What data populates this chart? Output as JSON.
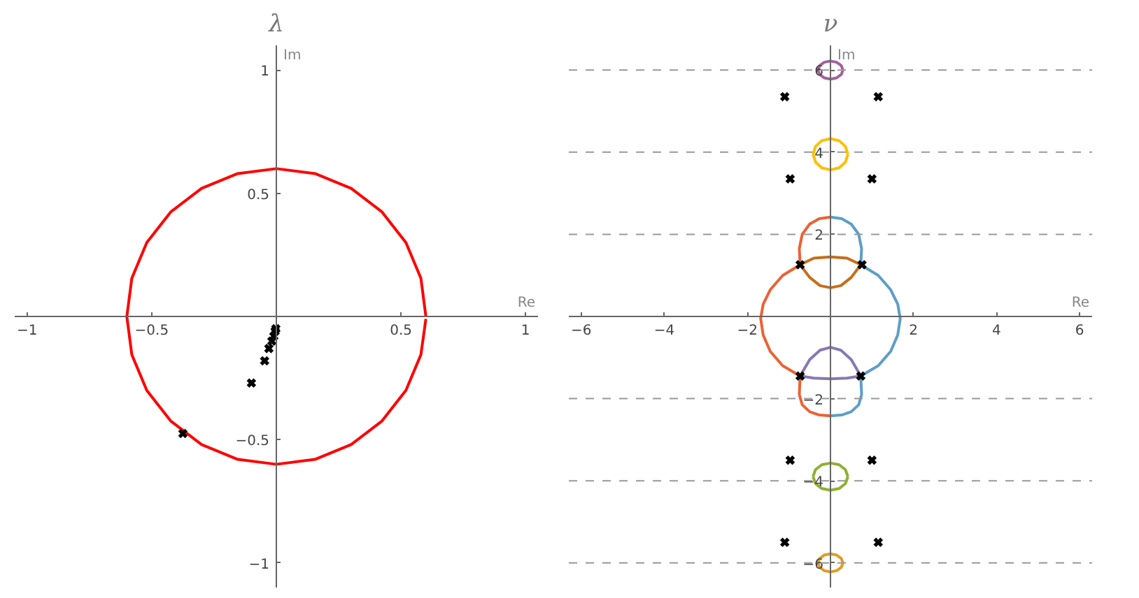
{
  "chart_data": [
    {
      "type": "line",
      "title": "λ",
      "xlabel": "Re",
      "ylabel": "Im",
      "xlim": [
        -1.05,
        1.05
      ],
      "ylim": [
        -1.1,
        1.1
      ],
      "xticks": [
        -1.0,
        -0.5,
        0.5,
        1.0
      ],
      "yticks": [
        -1.0,
        -0.5,
        0.5,
        1.0
      ],
      "grid": false,
      "series": [
        {
          "color": "#ff0000",
          "x": [
            0.6,
            0.58,
            0.52,
            0.424,
            0.3,
            0.155,
            0,
            -0.155,
            -0.3,
            -0.424,
            -0.52,
            -0.58,
            -0.6,
            -0.58,
            -0.52,
            -0.424,
            -0.3,
            -0.155,
            0,
            0.155,
            0.3,
            0.424,
            0.52,
            0.58,
            0.6
          ],
          "values": [
            0,
            0.155,
            0.3,
            0.424,
            0.52,
            0.58,
            0.6,
            0.58,
            0.52,
            0.424,
            0.3,
            0.155,
            0,
            -0.155,
            -0.3,
            -0.424,
            -0.52,
            -0.58,
            -0.6,
            -0.58,
            -0.52,
            -0.424,
            -0.3,
            -0.155,
            -0.01
          ]
        },
        {
          "type": "scatter",
          "marker": "cross",
          "color": "#000000",
          "x": [
            -0.375,
            -0.1,
            -0.047,
            -0.03,
            -0.018,
            -0.01,
            -0.005,
            -0.002
          ],
          "values": [
            -0.475,
            -0.27,
            -0.18,
            -0.13,
            -0.1,
            -0.08,
            -0.06,
            -0.05
          ]
        }
      ]
    },
    {
      "type": "line",
      "title": "ν",
      "xlabel": "Re",
      "ylabel": "Im",
      "xlim": [
        -6.3,
        6.3
      ],
      "ylim": [
        -6.6,
        6.6
      ],
      "xticks": [
        -6,
        -4,
        -2,
        2,
        4,
        6
      ],
      "yticks": [
        -6,
        -4,
        -2,
        2,
        4,
        6
      ],
      "grid": false,
      "ref_lines": [
        {
          "axis": "y",
          "value": 6,
          "color": "#999999",
          "line_style": "dashed"
        },
        {
          "axis": "y",
          "value": 4,
          "color": "#999999",
          "line_style": "dashed"
        },
        {
          "axis": "y",
          "value": 2,
          "color": "#999999",
          "line_style": "dashed"
        },
        {
          "axis": "y",
          "value": -2,
          "color": "#999999",
          "line_style": "dashed"
        },
        {
          "axis": "y",
          "value": -4,
          "color": "#999999",
          "line_style": "dashed"
        },
        {
          "axis": "y",
          "value": -6,
          "color": "#999999",
          "line_style": "dashed"
        }
      ],
      "series": [
        {
          "color": "#eb6235",
          "x": [
            -0.73,
            -1.15,
            -1.45,
            -1.62,
            -1.68,
            -1.62,
            -1.45,
            -1.15,
            -0.73
          ],
          "values": [
            1.26,
            1.0,
            0.65,
            0.3,
            -0.05,
            -0.45,
            -0.85,
            -1.2,
            -1.45
          ]
        },
        {
          "color": "#eb6235",
          "x": [
            -0.73,
            -0.75,
            -0.68,
            -0.5,
            -0.27,
            0
          ],
          "values": [
            1.26,
            1.65,
            2.0,
            2.25,
            2.38,
            2.42
          ]
        },
        {
          "color": "#eb6235",
          "x": [
            -0.73,
            -0.75,
            -0.68,
            -0.5,
            -0.27,
            0
          ],
          "values": [
            -1.45,
            -1.9,
            -2.15,
            -2.32,
            -2.4,
            -2.42
          ]
        },
        {
          "color": "#5d9ec7",
          "x": [
            0.73,
            1.15,
            1.45,
            1.62,
            1.68,
            1.62,
            1.45,
            1.15,
            0.73
          ],
          "values": [
            1.26,
            1.0,
            0.65,
            0.3,
            -0.05,
            -0.45,
            -0.85,
            -1.2,
            -1.45
          ]
        },
        {
          "color": "#5d9ec7",
          "x": [
            0.73,
            0.75,
            0.68,
            0.5,
            0.27,
            0
          ],
          "values": [
            1.26,
            1.65,
            2.0,
            2.25,
            2.38,
            2.42
          ]
        },
        {
          "color": "#5d9ec7",
          "x": [
            0.73,
            0.75,
            0.68,
            0.5,
            0.27,
            0
          ],
          "values": [
            -1.45,
            -1.9,
            -2.15,
            -2.32,
            -2.4,
            -2.42
          ]
        },
        {
          "color": "#c56e1a",
          "x": [
            -0.73,
            -0.4,
            0,
            0.4,
            0.73
          ],
          "values": [
            1.26,
            1.42,
            1.45,
            1.42,
            1.26
          ]
        },
        {
          "color": "#c56e1a",
          "x": [
            -0.73,
            -0.5,
            -0.25,
            0,
            0.25,
            0.5,
            0.73
          ],
          "values": [
            1.26,
            0.95,
            0.75,
            0.7,
            0.75,
            0.95,
            1.26
          ]
        },
        {
          "color": "#8778b3",
          "x": [
            -0.73,
            -0.5,
            -0.25,
            0,
            0.25,
            0.5,
            0.73
          ],
          "values": [
            -1.45,
            -1.05,
            -0.82,
            -0.75,
            -0.82,
            -1.05,
            -1.45
          ]
        },
        {
          "color": "#8778b3",
          "x": [
            -0.73,
            -0.4,
            0,
            0.4,
            0.73
          ],
          "values": [
            -1.45,
            -1.5,
            -1.52,
            -1.5,
            -1.45
          ]
        },
        {
          "color": "#a5609d",
          "x": [
            0.3,
            0.26,
            0.15,
            0,
            -0.15,
            -0.26,
            -0.3
          ],
          "values": [
            6,
            6.11,
            6.19,
            6.22,
            6.19,
            6.11,
            6
          ]
        },
        {
          "color": "#a5609d",
          "x": [
            -0.3,
            -0.26,
            -0.15,
            0,
            0.15,
            0.26,
            0.3
          ],
          "values": [
            6,
            5.89,
            5.81,
            5.78,
            5.81,
            5.89,
            6
          ]
        },
        {
          "color": "#ffbf00",
          "x": [
            0.42,
            0.36,
            0.21,
            0,
            -0.21,
            -0.36,
            -0.42
          ],
          "values": [
            3.95,
            4.14,
            4.28,
            4.33,
            4.28,
            4.14,
            3.95
          ]
        },
        {
          "color": "#ffbf00",
          "x": [
            -0.42,
            -0.36,
            -0.21,
            0,
            0.21,
            0.36,
            0.42
          ],
          "values": [
            3.95,
            3.76,
            3.62,
            3.57,
            3.62,
            3.76,
            3.95
          ]
        },
        {
          "color": "#8fb032",
          "x": [
            0.42,
            0.36,
            0.21,
            0,
            -0.21,
            -0.36,
            -0.42
          ],
          "values": [
            -3.9,
            -3.73,
            -3.61,
            -3.57,
            -3.61,
            -3.73,
            -3.9
          ]
        },
        {
          "color": "#8fb032",
          "x": [
            -0.42,
            -0.36,
            -0.21,
            0,
            0.21,
            0.36,
            0.42
          ],
          "values": [
            -3.9,
            -4.07,
            -4.19,
            -4.23,
            -4.19,
            -4.07,
            -3.9
          ]
        },
        {
          "color": "#e19c24",
          "x": [
            0.3,
            0.26,
            0.15,
            0,
            -0.15,
            -0.26,
            -0.3
          ],
          "values": [
            -6,
            -5.89,
            -5.81,
            -5.78,
            -5.81,
            -5.89,
            -6
          ]
        },
        {
          "color": "#e19c24",
          "x": [
            -0.3,
            -0.26,
            -0.15,
            0,
            0.15,
            0.26,
            0.3
          ],
          "values": [
            -6,
            -6.11,
            -6.19,
            -6.22,
            -6.19,
            -6.11,
            -6
          ]
        },
        {
          "type": "scatter",
          "marker": "cross",
          "color": "#000000",
          "x": [
            -1.1,
            1.15,
            -0.97,
            1.0,
            -0.73,
            0.76,
            -0.73,
            0.73,
            -0.97,
            1.0,
            -1.1,
            1.15
          ],
          "values": [
            5.35,
            5.35,
            3.35,
            3.35,
            1.26,
            1.26,
            -1.45,
            -1.45,
            -3.5,
            -3.5,
            -5.5,
            -5.5
          ]
        }
      ]
    }
  ]
}
